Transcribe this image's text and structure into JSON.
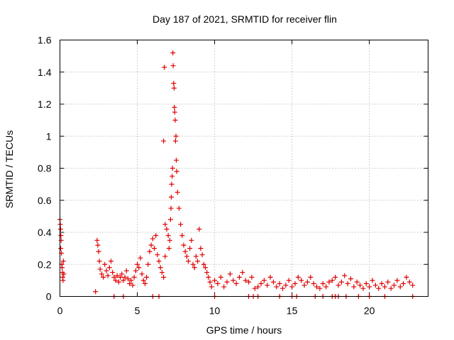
{
  "chart_data": {
    "type": "scatter",
    "title": "Day 187 of 2021, SRMTID for receiver flin",
    "xlabel": "GPS time / hours",
    "ylabel": "SRMTID / TECUs",
    "xlim": [
      0,
      23.8
    ],
    "ylim": [
      0,
      1.6
    ],
    "xticks": [
      0,
      5,
      10,
      15,
      20
    ],
    "yticks": [
      0,
      0.2,
      0.4,
      0.6,
      0.8,
      1,
      1.2,
      1.4,
      1.6
    ],
    "xtick_labels": [
      "0",
      "5",
      "10",
      "15",
      "20"
    ],
    "ytick_labels": [
      "0",
      "0.2",
      "0.4",
      "0.6",
      "0.8",
      "1",
      "1.2",
      "1.4",
      "1.6"
    ],
    "grid": true,
    "marker": "+",
    "color": "#e00000",
    "series": [
      {
        "name": "SRMTID",
        "points": [
          [
            0.0,
            0.48
          ],
          [
            0.02,
            0.45
          ],
          [
            0.04,
            0.42
          ],
          [
            0.06,
            0.38
          ],
          [
            0.08,
            0.35
          ],
          [
            0.05,
            0.3
          ],
          [
            0.1,
            0.27
          ],
          [
            0.12,
            0.2
          ],
          [
            0.14,
            0.18
          ],
          [
            0.16,
            0.15
          ],
          [
            0.18,
            0.12
          ],
          [
            0.2,
            0.1
          ],
          [
            0.22,
            0.22
          ],
          [
            0.25,
            0.14
          ],
          [
            2.3,
            0.03
          ],
          [
            2.4,
            0.35
          ],
          [
            2.45,
            0.32
          ],
          [
            2.5,
            0.28
          ],
          [
            2.55,
            0.22
          ],
          [
            2.6,
            0.17
          ],
          [
            2.7,
            0.14
          ],
          [
            2.8,
            0.12
          ],
          [
            2.9,
            0.2
          ],
          [
            3.0,
            0.16
          ],
          [
            3.1,
            0.13
          ],
          [
            3.2,
            0.18
          ],
          [
            3.3,
            0.22
          ],
          [
            3.4,
            0.15
          ],
          [
            3.5,
            0.12
          ],
          [
            3.6,
            0.1
          ],
          [
            3.7,
            0.13
          ],
          [
            3.8,
            0.09
          ],
          [
            3.9,
            0.12
          ],
          [
            4.0,
            0.14
          ],
          [
            4.1,
            0.1
          ],
          [
            4.2,
            0.12
          ],
          [
            4.3,
            0.16
          ],
          [
            4.4,
            0.11
          ],
          [
            4.5,
            0.08
          ],
          [
            4.6,
            0.1
          ],
          [
            4.7,
            0.07
          ],
          [
            4.8,
            0.12
          ],
          [
            4.9,
            0.16
          ],
          [
            5.0,
            0.2
          ],
          [
            5.1,
            0.18
          ],
          [
            5.2,
            0.24
          ],
          [
            5.3,
            0.14
          ],
          [
            5.4,
            0.1
          ],
          [
            5.5,
            0.08
          ],
          [
            5.6,
            0.12
          ],
          [
            5.7,
            0.2
          ],
          [
            5.8,
            0.28
          ],
          [
            5.9,
            0.32
          ],
          [
            6.0,
            0.36
          ],
          [
            6.1,
            0.3
          ],
          [
            6.2,
            0.38
          ],
          [
            6.3,
            0.26
          ],
          [
            6.4,
            0.22
          ],
          [
            6.5,
            0.18
          ],
          [
            6.6,
            0.15
          ],
          [
            6.7,
            0.12
          ],
          [
            6.8,
            0.25
          ],
          [
            6.7,
            0.97
          ],
          [
            6.75,
            1.43
          ],
          [
            6.8,
            0.45
          ],
          [
            6.9,
            0.42
          ],
          [
            7.0,
            0.38
          ],
          [
            7.05,
            0.3
          ],
          [
            7.1,
            0.35
          ],
          [
            7.15,
            0.48
          ],
          [
            7.18,
            0.55
          ],
          [
            7.2,
            0.62
          ],
          [
            7.22,
            0.7
          ],
          [
            7.25,
            0.75
          ],
          [
            7.28,
            0.8
          ],
          [
            7.3,
            1.52
          ],
          [
            7.32,
            1.44
          ],
          [
            7.35,
            1.33
          ],
          [
            7.38,
            1.3
          ],
          [
            7.4,
            1.18
          ],
          [
            7.42,
            1.15
          ],
          [
            7.45,
            1.1
          ],
          [
            7.47,
            0.97
          ],
          [
            7.5,
            1.0
          ],
          [
            7.52,
            0.85
          ],
          [
            7.55,
            0.78
          ],
          [
            7.6,
            0.65
          ],
          [
            7.7,
            0.55
          ],
          [
            7.8,
            0.45
          ],
          [
            7.9,
            0.38
          ],
          [
            8.0,
            0.32
          ],
          [
            8.1,
            0.28
          ],
          [
            8.2,
            0.25
          ],
          [
            8.3,
            0.22
          ],
          [
            8.4,
            0.3
          ],
          [
            8.5,
            0.35
          ],
          [
            8.6,
            0.2
          ],
          [
            8.7,
            0.18
          ],
          [
            8.8,
            0.25
          ],
          [
            8.9,
            0.22
          ],
          [
            9.0,
            0.42
          ],
          [
            9.1,
            0.3
          ],
          [
            9.2,
            0.26
          ],
          [
            9.3,
            0.2
          ],
          [
            9.4,
            0.18
          ],
          [
            9.5,
            0.15
          ],
          [
            9.6,
            0.12
          ],
          [
            9.7,
            0.09
          ],
          [
            9.8,
            0.06
          ],
          [
            10.0,
            0.1
          ],
          [
            10.2,
            0.08
          ],
          [
            10.4,
            0.12
          ],
          [
            10.6,
            0.06
          ],
          [
            10.8,
            0.09
          ],
          [
            11.0,
            0.14
          ],
          [
            11.2,
            0.1
          ],
          [
            11.4,
            0.08
          ],
          [
            11.6,
            0.12
          ],
          [
            11.8,
            0.15
          ],
          [
            12.0,
            0.1
          ],
          [
            12.2,
            0.09
          ],
          [
            12.4,
            0.12
          ],
          [
            12.6,
            0.05
          ],
          [
            12.8,
            0.06
          ],
          [
            13.0,
            0.08
          ],
          [
            13.2,
            0.1
          ],
          [
            13.4,
            0.07
          ],
          [
            13.6,
            0.12
          ],
          [
            13.8,
            0.09
          ],
          [
            14.0,
            0.06
          ],
          [
            14.2,
            0.08
          ],
          [
            14.4,
            0.05
          ],
          [
            14.6,
            0.07
          ],
          [
            14.8,
            0.1
          ],
          [
            15.0,
            0.06
          ],
          [
            15.2,
            0.08
          ],
          [
            15.4,
            0.12
          ],
          [
            15.6,
            0.1
          ],
          [
            15.8,
            0.07
          ],
          [
            16.0,
            0.09
          ],
          [
            16.2,
            0.12
          ],
          [
            16.4,
            0.08
          ],
          [
            16.6,
            0.06
          ],
          [
            16.8,
            0.05
          ],
          [
            17.0,
            0.08
          ],
          [
            17.2,
            0.06
          ],
          [
            17.4,
            0.09
          ],
          [
            17.6,
            0.1
          ],
          [
            17.8,
            0.12
          ],
          [
            18.0,
            0.07
          ],
          [
            18.2,
            0.09
          ],
          [
            18.4,
            0.13
          ],
          [
            18.6,
            0.08
          ],
          [
            18.8,
            0.11
          ],
          [
            19.0,
            0.06
          ],
          [
            19.2,
            0.09
          ],
          [
            19.4,
            0.07
          ],
          [
            19.6,
            0.05
          ],
          [
            19.8,
            0.08
          ],
          [
            20.0,
            0.06
          ],
          [
            20.2,
            0.1
          ],
          [
            20.4,
            0.07
          ],
          [
            20.6,
            0.05
          ],
          [
            20.8,
            0.08
          ],
          [
            21.0,
            0.06
          ],
          [
            21.2,
            0.09
          ],
          [
            21.4,
            0.05
          ],
          [
            21.6,
            0.07
          ],
          [
            21.8,
            0.1
          ],
          [
            22.0,
            0.06
          ],
          [
            22.2,
            0.08
          ],
          [
            22.4,
            0.12
          ],
          [
            22.6,
            0.09
          ],
          [
            22.8,
            0.07
          ],
          [
            3.5,
            0.0
          ],
          [
            4.1,
            0.0
          ],
          [
            6.0,
            0.0
          ],
          [
            6.4,
            0.0
          ],
          [
            10.0,
            0.0
          ],
          [
            12.2,
            0.0
          ],
          [
            12.5,
            0.0
          ],
          [
            12.8,
            0.0
          ],
          [
            14.2,
            0.0
          ],
          [
            15.0,
            0.0
          ],
          [
            15.3,
            0.0
          ],
          [
            16.5,
            0.0
          ],
          [
            17.0,
            0.0
          ],
          [
            17.6,
            0.0
          ],
          [
            17.8,
            0.0
          ],
          [
            18.0,
            0.0
          ],
          [
            18.5,
            0.0
          ],
          [
            19.3,
            0.0
          ],
          [
            20.0,
            0.0
          ],
          [
            21.0,
            0.0
          ],
          [
            22.8,
            0.0
          ]
        ]
      }
    ]
  }
}
